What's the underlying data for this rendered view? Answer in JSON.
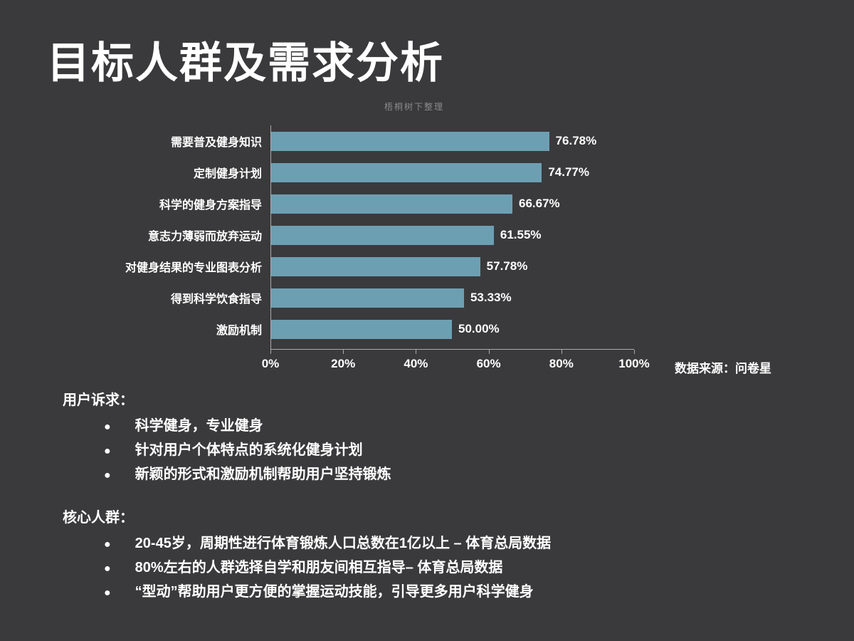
{
  "slide": {
    "title": "目标人群及需求分析",
    "watermark": "梧桐树下整理",
    "source": "数据来源：问卷星"
  },
  "chart_data": {
    "type": "bar",
    "orientation": "horizontal",
    "categories": [
      "需要普及健身知识",
      "定制健身计划",
      "科学的健身方案指导",
      "意志力薄弱而放弃运动",
      "对健身结果的专业图表分析",
      "得到科学饮食指导",
      "激励机制"
    ],
    "values": [
      76.78,
      74.77,
      66.67,
      61.55,
      57.78,
      53.33,
      50.0
    ],
    "value_labels": [
      "76.78%",
      "74.77%",
      "66.67%",
      "61.55%",
      "57.78%",
      "53.33%",
      "50.00%"
    ],
    "x_ticks": [
      "0%",
      "20%",
      "40%",
      "60%",
      "80%",
      "100%"
    ],
    "xlim": [
      0,
      100
    ],
    "bar_color": "#6D9FB3",
    "axis_color": "#a9a9a9",
    "title": "",
    "xlabel": "",
    "ylabel": "",
    "legend": "none",
    "grid": "off"
  },
  "user_demands": {
    "heading": "用户诉求：",
    "items": [
      "科学健身，专业健身",
      "针对用户个体特点的系统化健身计划",
      "新颖的形式和激励机制帮助用户坚持锻炼"
    ]
  },
  "core_population": {
    "heading": "核心人群：",
    "items": [
      "20-45岁，周期性进行体育锻炼人口总数在1亿以上 – 体育总局数据",
      "80%左右的人群选择自学和朋友间相互指导– 体育总局数据",
      "“型动”帮助用户更方便的掌握运动技能，引导更多用户科学健身"
    ]
  }
}
